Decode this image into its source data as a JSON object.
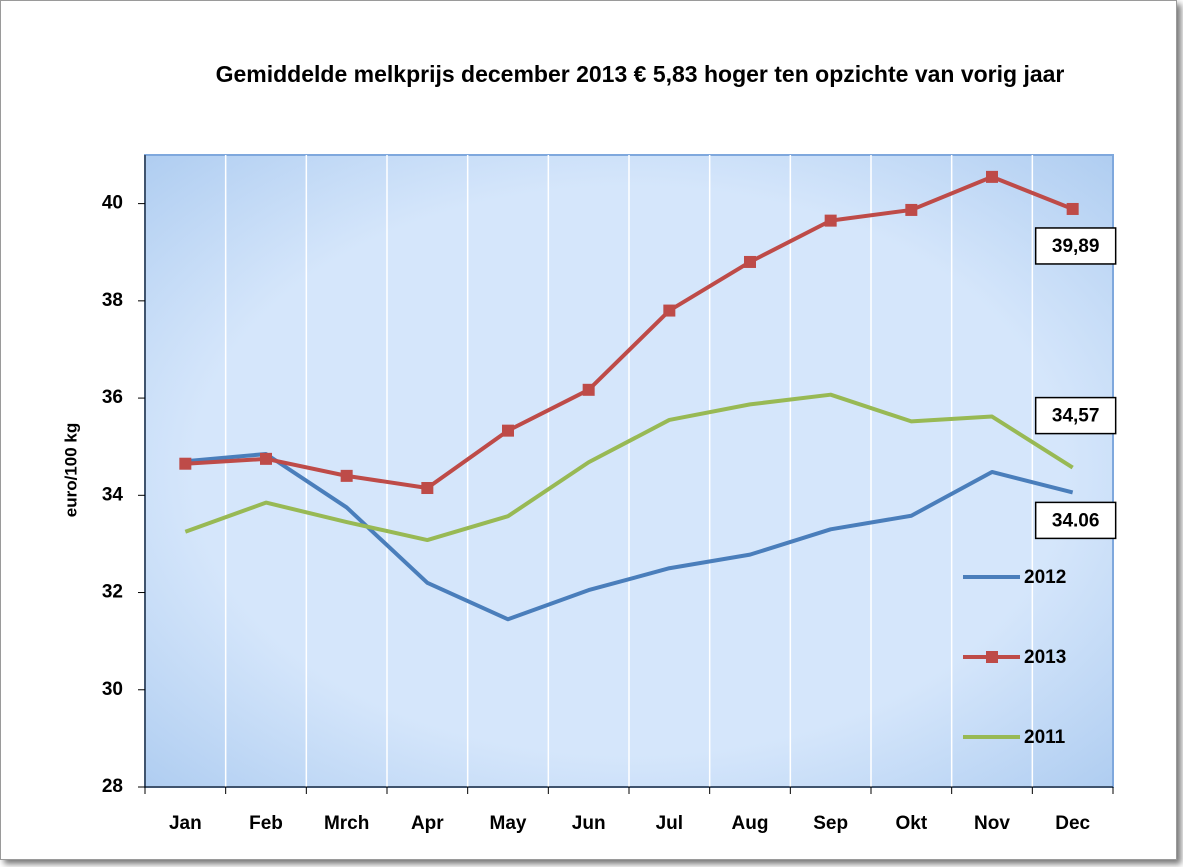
{
  "chart_data": {
    "type": "line",
    "title": "Gemiddelde melkprijs december 2013 € 5,83 hoger ten opzichte van vorig jaar",
    "y_label": "euro/100 kg",
    "categories": [
      "Jan",
      "Feb",
      "Mrch",
      "Apr",
      "May",
      "Jun",
      "Jul",
      "Aug",
      "Sep",
      "Okt",
      "Nov",
      "Dec"
    ],
    "series": [
      {
        "name": "2012",
        "color": "#4a7ebb",
        "marker": "none",
        "values": [
          34.7,
          34.85,
          33.75,
          32.2,
          31.45,
          32.05,
          32.5,
          32.78,
          33.3,
          33.58,
          34.48,
          34.06
        ],
        "value_labels": [
          null,
          null,
          null,
          null,
          null,
          null,
          null,
          null,
          null,
          null,
          null,
          "34.06"
        ]
      },
      {
        "name": "2013",
        "color": "#be4b48",
        "marker": "square",
        "values": [
          34.65,
          34.75,
          34.4,
          34.15,
          35.33,
          36.17,
          37.8,
          38.8,
          39.65,
          39.87,
          40.55,
          39.89
        ],
        "value_labels": [
          null,
          null,
          null,
          null,
          null,
          null,
          null,
          null,
          null,
          null,
          null,
          "39,89"
        ]
      },
      {
        "name": "2011",
        "color": "#98b954",
        "marker": "none",
        "values": [
          33.25,
          33.85,
          33.45,
          33.08,
          33.57,
          34.68,
          35.55,
          35.87,
          36.07,
          35.52,
          35.62,
          34.57
        ],
        "value_labels": [
          null,
          null,
          null,
          null,
          null,
          null,
          null,
          null,
          null,
          null,
          null,
          "34,57"
        ]
      }
    ],
    "ylim": [
      28,
      41
    ],
    "yticks": [
      28,
      30,
      32,
      34,
      36,
      38,
      40
    ],
    "grid": "vertical"
  }
}
